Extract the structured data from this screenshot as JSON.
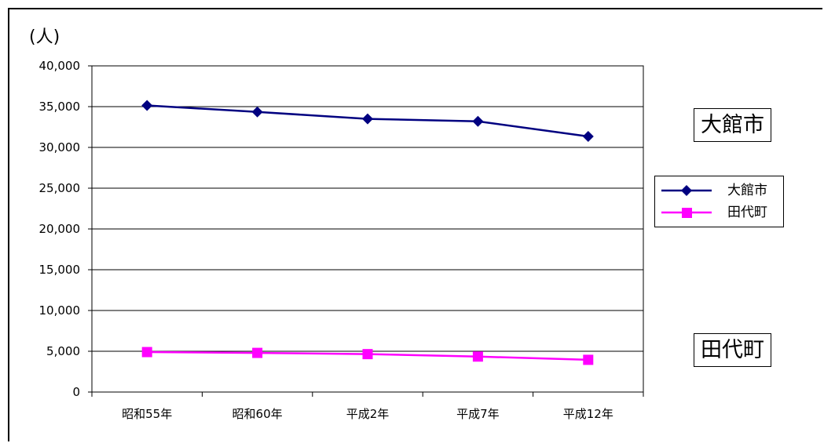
{
  "chart_data": {
    "type": "line",
    "unit_label": "(人)",
    "categories": [
      "昭和55年",
      "昭和60年",
      "平成2年",
      "平成7年",
      "平成12年"
    ],
    "ylim": [
      0,
      40000
    ],
    "y_ticks": [
      0,
      5000,
      10000,
      15000,
      20000,
      25000,
      30000,
      35000,
      40000
    ],
    "y_tick_labels": [
      "0",
      "5,000",
      "10,000",
      "15,000",
      "20,000",
      "25,000",
      "30,000",
      "35,000",
      "40,000"
    ],
    "grid": true,
    "legend_position": "right",
    "series": [
      {
        "name": "大館市",
        "values": [
          35150,
          34350,
          33500,
          33200,
          31350
        ],
        "color": "#000080",
        "marker": "diamond"
      },
      {
        "name": "田代町",
        "values": [
          4900,
          4800,
          4650,
          4350,
          3950
        ],
        "color": "#ff00ff",
        "marker": "square"
      }
    ],
    "annotations": [
      "大館市",
      "田代町"
    ]
  }
}
